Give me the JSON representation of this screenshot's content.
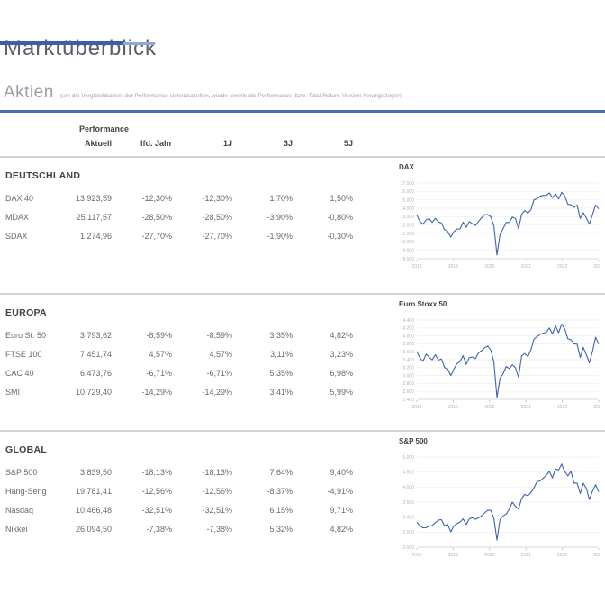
{
  "header": {
    "title": "Marktüberblick",
    "subtitle": "Aktien",
    "note": "(um die Vergleichbarkeit der Performance sicherzustellen, wurde jeweils die Performance- bzw. Total-Return-Version herangezogen)"
  },
  "table": {
    "group_label": "Performance",
    "columns": [
      "Aktuell",
      "lfd. Jahr",
      "1J",
      "3J",
      "5J"
    ]
  },
  "sections": [
    {
      "title": "DEUTSCHLAND",
      "rows": [
        [
          "DAX 40",
          "13.923,59",
          "-12,30%",
          "-12,30%",
          "1,70%",
          "1,50%"
        ],
        [
          "MDAX",
          "25.117,57",
          "-28,50%",
          "-28,50%",
          "-3,90%",
          "-0,80%"
        ],
        [
          "SDAX",
          "1.274,96",
          "-27,70%",
          "-27,70%",
          "-1,90%",
          "-0,30%"
        ]
      ]
    },
    {
      "title": "EUROPA",
      "rows": [
        [
          "Euro St. 50",
          "3.793,62",
          "-8,59%",
          "-8,59%",
          "3,35%",
          "4,82%"
        ],
        [
          "FTSE 100",
          "7.451,74",
          "4,57%",
          "4,57%",
          "3,11%",
          "3,23%"
        ],
        [
          "CAC 40",
          "6.473,76",
          "-6,71%",
          "-6,71%",
          "5,35%",
          "6,98%"
        ],
        [
          "SMI",
          "10.729,40",
          "-14,29%",
          "-14,29%",
          "3,41%",
          "5,99%"
        ]
      ]
    },
    {
      "title": "GLOBAL",
      "rows": [
        [
          "S&P 500",
          "3.839,50",
          "-18,13%",
          "-18,13%",
          "7,64%",
          "9,40%"
        ],
        [
          "Hang-Seng",
          "19.781,41",
          "-12,56%",
          "-12,56%",
          "-8,37%",
          "-4,91%"
        ],
        [
          "Nasdaq",
          "10.466,48",
          "-32,51%",
          "-32,51%",
          "6,15%",
          "9,71%"
        ],
        [
          "Nikkei",
          "26.094,50",
          "-7,38%",
          "-7,38%",
          "5,32%",
          "4,82%"
        ]
      ]
    }
  ],
  "chart_data": [
    {
      "type": "line",
      "title": "DAX",
      "x": {
        "ticks": [
          "2018",
          "2019",
          "2020",
          "2021",
          "2022",
          "2023"
        ]
      },
      "y": {
        "min": 8000,
        "max": 17000,
        "step": 1000,
        "tick_labels": [
          "8.000",
          "9.000",
          "10.000",
          "11.000",
          "12.000",
          "13.000",
          "14.000",
          "15.000",
          "16.000",
          "17.000"
        ]
      },
      "values": [
        13180,
        12440,
        12100,
        12600,
        12770,
        12310,
        12800,
        12360,
        12240,
        11450,
        11250,
        10560,
        11200,
        11510,
        11530,
        12340,
        11730,
        12400,
        12170,
        11940,
        12430,
        12870,
        13240,
        13250,
        12980,
        11890,
        8440,
        10860,
        11590,
        12310,
        12310,
        12945,
        12760,
        11560,
        13290,
        13720,
        13430,
        13790,
        15000,
        15135,
        15420,
        15530,
        15540,
        15835,
        15260,
        15690,
        15100,
        15885,
        15470,
        14460,
        14415,
        14098,
        14390,
        12780,
        13480,
        12835,
        12114,
        13254,
        14397,
        13924
      ]
    },
    {
      "type": "line",
      "title": "Euro Stoxx 50",
      "x": {
        "ticks": [
          "2018",
          "2019",
          "2020",
          "2021",
          "2022",
          "2023"
        ]
      },
      "y": {
        "min": 2400,
        "max": 4400,
        "step": 200,
        "tick_labels": [
          "2.400",
          "2.600",
          "2.800",
          "3.000",
          "3.200",
          "3.400",
          "3.600",
          "3.800",
          "4.000",
          "4.200",
          "4.400"
        ]
      },
      "values": [
        3610,
        3440,
        3360,
        3540,
        3460,
        3395,
        3525,
        3390,
        3415,
        3200,
        3170,
        3000,
        3160,
        3300,
        3350,
        3500,
        3280,
        3450,
        3465,
        3430,
        3570,
        3625,
        3700,
        3745,
        3640,
        3330,
        2450,
        2930,
        3050,
        3230,
        3175,
        3270,
        3195,
        2960,
        3495,
        3555,
        3480,
        3640,
        3920,
        3975,
        4040,
        4065,
        4090,
        4200,
        4050,
        4250,
        4080,
        4300,
        4175,
        3925,
        3905,
        3800,
        3790,
        3455,
        3710,
        3520,
        3320,
        3615,
        3965,
        3794
      ]
    },
    {
      "type": "line",
      "title": "S&P 500",
      "x": {
        "ticks": [
          "2018",
          "2019",
          "2020",
          "2021",
          "2022",
          "2023"
        ]
      },
      "y": {
        "min": 2000,
        "max": 5000,
        "step": 500,
        "tick_labels": [
          "2.000",
          "2.500",
          "3.000",
          "3.500",
          "4.000",
          "4.500",
          "5.000"
        ]
      },
      "values": [
        2824,
        2714,
        2641,
        2648,
        2705,
        2718,
        2816,
        2902,
        2914,
        2712,
        2760,
        2507,
        2704,
        2784,
        2834,
        2946,
        2752,
        2942,
        2980,
        2926,
        2977,
        3038,
        3141,
        3231,
        3226,
        2954,
        2237,
        2912,
        3044,
        3100,
        3271,
        3500,
        3363,
        3270,
        3622,
        3756,
        3714,
        3811,
        3973,
        4181,
        4204,
        4298,
        4395,
        4523,
        4308,
        4605,
        4567,
        4766,
        4516,
        4374,
        4530,
        4132,
        4132,
        3785,
        4130,
        3955,
        3586,
        3872,
        4080,
        3840
      ]
    }
  ],
  "colors": {
    "accent_dark": "#3d5ea9",
    "accent_light": "#8fa6d6",
    "rule_blue": "#4a6ab3",
    "divider_gray": "#d2d2d2",
    "chart_line": "#3e63ad"
  }
}
